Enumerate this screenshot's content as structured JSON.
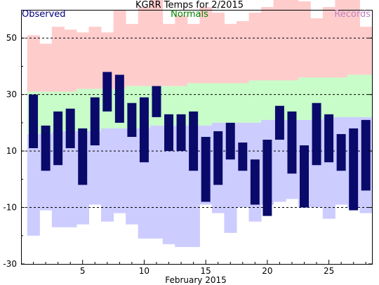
{
  "chart_data": {
    "type": "bar",
    "title": "KGRR Temps for 2/2015",
    "legend": {
      "observed": "Observed",
      "normals": "Normals",
      "records": "Records",
      "placement": "top"
    },
    "xlabel": "February 2015",
    "ylabel": "",
    "ylim": [
      -30,
      60
    ],
    "y_ticks": [
      50,
      30,
      10,
      -10,
      -30
    ],
    "y_tick_labels": [
      "50",
      "30",
      "10",
      "-10",
      "-30"
    ],
    "x_ticks": [
      5,
      10,
      15,
      20,
      25
    ],
    "x_tick_labels": [
      "5",
      "10",
      "15",
      "20",
      "25"
    ],
    "days": [
      1,
      2,
      3,
      4,
      5,
      6,
      7,
      8,
      9,
      10,
      11,
      12,
      13,
      14,
      15,
      16,
      17,
      18,
      19,
      20,
      21,
      22,
      23,
      24,
      25,
      26,
      27,
      28
    ],
    "grid": "dashed horizontal at 50, 30, 10, -10",
    "colors": {
      "observed": "#0a0a6b",
      "normals": "#c8fcc8",
      "record_high": "#ffcccc",
      "record_low": "#ccccff",
      "title_text": "#000000",
      "observed_text": "#000080",
      "normals_text": "#008000",
      "records_text": "#c080c0"
    },
    "series": [
      {
        "name": "Observed",
        "high": [
          30,
          19,
          24,
          25,
          18,
          29,
          38,
          37,
          27,
          29,
          33,
          23,
          23,
          24,
          15,
          17,
          20,
          13,
          7,
          14,
          26,
          24,
          12,
          27,
          23,
          16,
          18,
          21
        ],
        "low": [
          11,
          3,
          5,
          11,
          -2,
          12,
          24,
          20,
          15,
          6,
          22,
          10,
          10,
          3,
          -8,
          -2,
          7,
          3,
          -9,
          -13,
          14,
          2,
          -10,
          5,
          6,
          3,
          -11,
          -4
        ]
      },
      {
        "name": "Normals",
        "high": [
          31,
          31,
          31,
          31,
          32,
          32,
          32,
          32,
          33,
          33,
          33,
          33,
          33,
          34,
          34,
          34,
          34,
          34,
          35,
          35,
          35,
          35,
          36,
          36,
          36,
          36,
          37,
          37
        ],
        "low": [
          16,
          16,
          17,
          17,
          17,
          17,
          18,
          18,
          18,
          18,
          19,
          19,
          19,
          19,
          19,
          20,
          20,
          20,
          20,
          21,
          21,
          21,
          21,
          21,
          22,
          22,
          22,
          22
        ]
      },
      {
        "name": "Record High",
        "values": [
          51,
          48,
          54,
          53,
          52,
          54,
          52,
          60,
          55,
          61,
          68,
          55,
          58,
          55,
          61,
          59,
          55,
          56,
          59,
          61,
          66,
          67,
          63,
          57,
          61,
          64,
          66,
          54
        ]
      },
      {
        "name": "Record Low",
        "values": [
          -20,
          -11,
          -17,
          -17,
          -16,
          -9,
          -15,
          -12,
          -16,
          -21,
          -21,
          -23,
          -24,
          -24,
          -9,
          -12,
          -19,
          -10,
          -15,
          -9,
          -8,
          -7,
          -10,
          -10,
          -14,
          -9,
          -10,
          -12
        ]
      }
    ]
  }
}
